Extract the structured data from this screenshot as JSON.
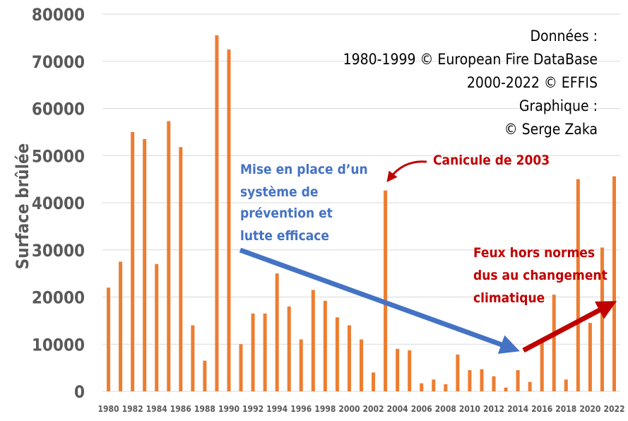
{
  "chart_data": {
    "type": "bar",
    "ylabel": "Surface brûlée",
    "xlabel": "",
    "ylim": [
      0,
      80000
    ],
    "yticks": [
      0,
      10000,
      20000,
      30000,
      40000,
      50000,
      60000,
      70000,
      80000
    ],
    "grid": true,
    "categories": [
      "1980",
      "1981",
      "1982",
      "1983",
      "1984",
      "1985",
      "1986",
      "1987",
      "1988",
      "1989",
      "1990",
      "1991",
      "1992",
      "1993",
      "1994",
      "1995",
      "1996",
      "1997",
      "1998",
      "1999",
      "2000",
      "2001",
      "2002",
      "2003",
      "2004",
      "2005",
      "2006",
      "2007",
      "2008",
      "2009",
      "2010",
      "2011",
      "2012",
      "2013",
      "2014",
      "2015",
      "2016",
      "2017",
      "2018",
      "2019",
      "2020",
      "2021",
      "2022"
    ],
    "values": [
      22000,
      27500,
      55000,
      53500,
      27000,
      57300,
      51800,
      14000,
      6500,
      75500,
      72500,
      10000,
      16500,
      16500,
      25000,
      18000,
      11000,
      21500,
      19200,
      15700,
      14000,
      11000,
      4000,
      42600,
      9000,
      8700,
      1700,
      2500,
      1500,
      7800,
      4500,
      4700,
      3200,
      800,
      4500,
      2000,
      10500,
      20500,
      2500,
      45000,
      14500,
      30500,
      45600
    ],
    "series_color": "#ED7D31",
    "annotations": {
      "source": [
        "Données :",
        "1980-1999 © European Fire DataBase",
        "2000-2022 © EFFIS",
        "Graphique :",
        "© Serge Zaka"
      ],
      "prevention": {
        "lines": [
          "Mise en place d’un",
          "système de",
          "prévention et",
          "lutte efficace"
        ],
        "color": "#4472C4"
      },
      "canicule": {
        "text": "Canicule de 2003",
        "color": "#C00000"
      },
      "climate": {
        "lines": [
          "Feux hors normes",
          "dus au changement",
          "climatique"
        ],
        "color": "#C00000"
      }
    }
  }
}
